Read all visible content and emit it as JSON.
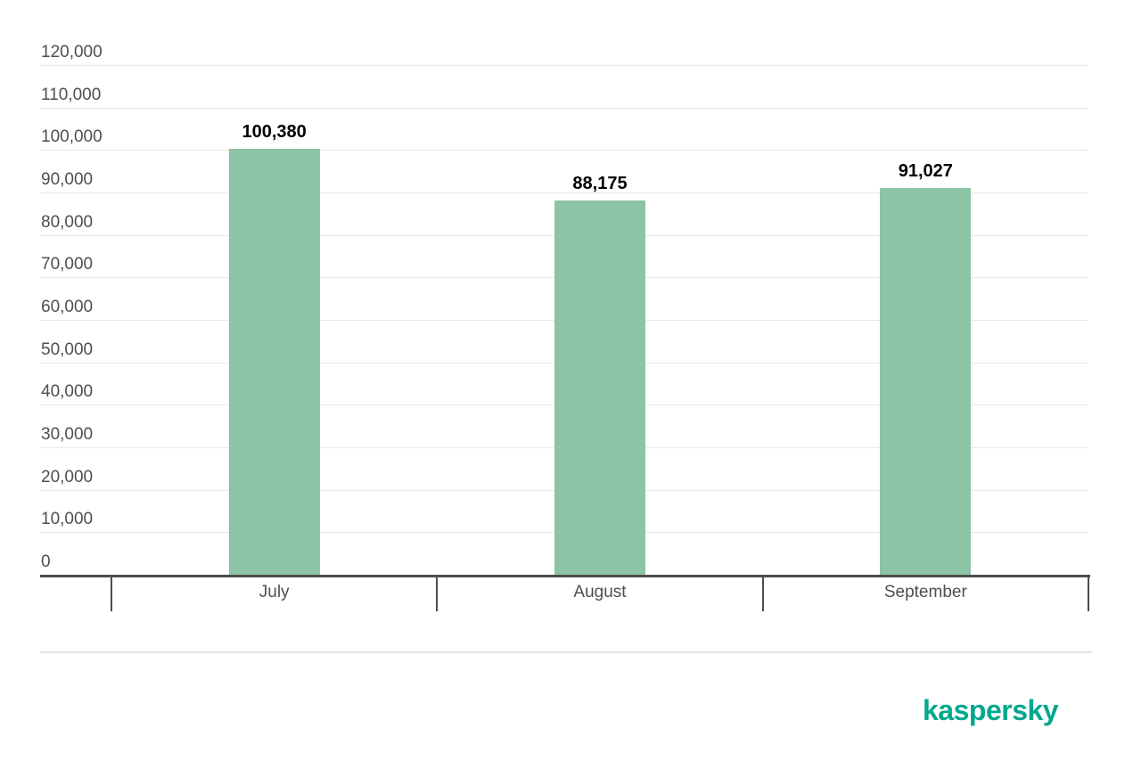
{
  "chart_data": {
    "type": "bar",
    "categories": [
      "July",
      "August",
      "September"
    ],
    "values": [
      100380,
      88175,
      91027
    ],
    "value_labels": [
      "100,380",
      "88,175",
      "91,027"
    ],
    "title": "",
    "xlabel": "",
    "ylabel": "",
    "ylim": [
      0,
      120000
    ],
    "ytick_step": 10000,
    "ytick_labels": [
      "0",
      "10,000",
      "20,000",
      "30,000",
      "40,000",
      "50,000",
      "60,000",
      "70,000",
      "80,000",
      "90,000",
      "100,000",
      "110,000",
      "120,000"
    ],
    "grid": true,
    "legend_position": "none",
    "bar_color": "#8cc4a5"
  },
  "colors": {
    "background": "#ffffff",
    "bar": "#8cc4a5",
    "axis": "#4d4d4d",
    "gridline": "#e9e9e9",
    "axis_label": "#4f4f4f",
    "value_label": "#000000",
    "divider": "#e4e4e4",
    "brand": "#00a88e"
  },
  "branding": {
    "logo_text": "kaspersky"
  }
}
